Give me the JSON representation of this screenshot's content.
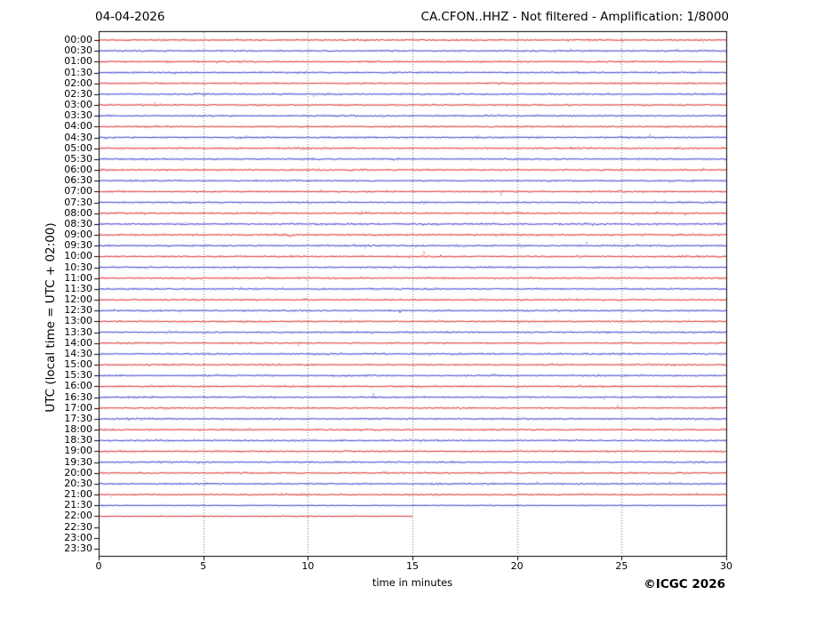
{
  "header": {
    "date": "04-04-2026",
    "title": "CA.CFON..HHZ - Not filtered - Amplification: 1/8000"
  },
  "footer": {
    "credit": "©ICGC 2026"
  },
  "chart_data": {
    "type": "line",
    "subtype": "helicorder-dayplot",
    "date": "04-04-2026",
    "title": "CA.CFON..HHZ - Not filtered - Amplification: 1/8000",
    "xlabel": "time in minutes",
    "ylabel": "UTC (local time = UTC + 02:00)",
    "xlim": [
      0,
      30
    ],
    "x_ticks": [
      0,
      5,
      10,
      15,
      20,
      25,
      30
    ],
    "minutes_per_line": 30,
    "grid": {
      "vertical_dotted_minutes": [
        5,
        10,
        15,
        20,
        25
      ],
      "color": "#777777"
    },
    "colors": {
      "hour_trace": "#d40000",
      "half_hour_trace": "#1414c8",
      "frame": "#000000"
    },
    "rows": [
      {
        "label": "00:00",
        "color": "#d40000",
        "start_min": 0,
        "end_min": 30,
        "amp": 1
      },
      {
        "label": "00:30",
        "color": "#1414c8",
        "start_min": 0,
        "end_min": 30,
        "amp": 1
      },
      {
        "label": "01:00",
        "color": "#d40000",
        "start_min": 0,
        "end_min": 30,
        "amp": 1
      },
      {
        "label": "01:30",
        "color": "#1414c8",
        "start_min": 0,
        "end_min": 30,
        "amp": 1
      },
      {
        "label": "02:00",
        "color": "#d40000",
        "start_min": 0,
        "end_min": 30,
        "amp": 1
      },
      {
        "label": "02:30",
        "color": "#1414c8",
        "start_min": 0,
        "end_min": 30,
        "amp": 1
      },
      {
        "label": "03:00",
        "color": "#d40000",
        "start_min": 0,
        "end_min": 30,
        "amp": 1
      },
      {
        "label": "03:30",
        "color": "#1414c8",
        "start_min": 0,
        "end_min": 30,
        "amp": 1
      },
      {
        "label": "04:00",
        "color": "#d40000",
        "start_min": 0,
        "end_min": 30,
        "amp": 1
      },
      {
        "label": "04:30",
        "color": "#1414c8",
        "start_min": 0,
        "end_min": 30,
        "amp": 1
      },
      {
        "label": "05:00",
        "color": "#d40000",
        "start_min": 0,
        "end_min": 30,
        "amp": 1
      },
      {
        "label": "05:30",
        "color": "#1414c8",
        "start_min": 0,
        "end_min": 30,
        "amp": 1
      },
      {
        "label": "06:00",
        "color": "#d40000",
        "start_min": 0,
        "end_min": 30,
        "amp": 1
      },
      {
        "label": "06:30",
        "color": "#1414c8",
        "start_min": 0,
        "end_min": 30,
        "amp": 1
      },
      {
        "label": "07:00",
        "color": "#d40000",
        "start_min": 0,
        "end_min": 30,
        "amp": 1
      },
      {
        "label": "07:30",
        "color": "#1414c8",
        "start_min": 0,
        "end_min": 30,
        "amp": 1
      },
      {
        "label": "08:00",
        "color": "#d40000",
        "start_min": 0,
        "end_min": 30,
        "amp": 1.15
      },
      {
        "label": "08:30",
        "color": "#1414c8",
        "start_min": 0,
        "end_min": 30,
        "amp": 1.15
      },
      {
        "label": "09:00",
        "color": "#d40000",
        "start_min": 0,
        "end_min": 30,
        "amp": 1.15
      },
      {
        "label": "09:30",
        "color": "#1414c8",
        "start_min": 0,
        "end_min": 30,
        "amp": 1.15
      },
      {
        "label": "10:00",
        "color": "#d40000",
        "start_min": 0,
        "end_min": 30,
        "amp": 1
      },
      {
        "label": "10:30",
        "color": "#1414c8",
        "start_min": 0,
        "end_min": 30,
        "amp": 1
      },
      {
        "label": "11:00",
        "color": "#d40000",
        "start_min": 0,
        "end_min": 30,
        "amp": 1
      },
      {
        "label": "11:30",
        "color": "#1414c8",
        "start_min": 0,
        "end_min": 30,
        "amp": 1
      },
      {
        "label": "12:00",
        "color": "#d40000",
        "start_min": 0,
        "end_min": 30,
        "amp": 1
      },
      {
        "label": "12:30",
        "color": "#1414c8",
        "start_min": 0,
        "end_min": 30,
        "amp": 1
      },
      {
        "label": "13:00",
        "color": "#d40000",
        "start_min": 0,
        "end_min": 30,
        "amp": 1
      },
      {
        "label": "13:30",
        "color": "#1414c8",
        "start_min": 0,
        "end_min": 30,
        "amp": 1
      },
      {
        "label": "14:00",
        "color": "#d40000",
        "start_min": 0,
        "end_min": 30,
        "amp": 1
      },
      {
        "label": "14:30",
        "color": "#1414c8",
        "start_min": 0,
        "end_min": 30,
        "amp": 1
      },
      {
        "label": "15:00",
        "color": "#d40000",
        "start_min": 0,
        "end_min": 30,
        "amp": 1
      },
      {
        "label": "15:30",
        "color": "#1414c8",
        "start_min": 0,
        "end_min": 30,
        "amp": 1
      },
      {
        "label": "16:00",
        "color": "#d40000",
        "start_min": 0,
        "end_min": 30,
        "amp": 1
      },
      {
        "label": "16:30",
        "color": "#1414c8",
        "start_min": 0,
        "end_min": 30,
        "amp": 1
      },
      {
        "label": "17:00",
        "color": "#d40000",
        "start_min": 0,
        "end_min": 30,
        "amp": 0.9
      },
      {
        "label": "17:30",
        "color": "#1414c8",
        "start_min": 0,
        "end_min": 30,
        "amp": 1
      },
      {
        "label": "18:00",
        "color": "#d40000",
        "start_min": 0,
        "end_min": 30,
        "amp": 1
      },
      {
        "label": "18:30",
        "color": "#1414c8",
        "start_min": 0,
        "end_min": 30,
        "amp": 1
      },
      {
        "label": "19:00",
        "color": "#d40000",
        "start_min": 0,
        "end_min": 30,
        "amp": 1
      },
      {
        "label": "19:30",
        "color": "#1414c8",
        "start_min": 0,
        "end_min": 30,
        "amp": 1
      },
      {
        "label": "20:00",
        "color": "#d40000",
        "start_min": 0,
        "end_min": 30,
        "amp": 1
      },
      {
        "label": "20:30",
        "color": "#1414c8",
        "start_min": 0,
        "end_min": 30,
        "amp": 1
      },
      {
        "label": "21:00",
        "color": "#d40000",
        "start_min": 0,
        "end_min": 30,
        "amp": 1
      },
      {
        "label": "21:30",
        "color": "#1414c8",
        "start_min": 0,
        "end_min": 30,
        "amp": 0.65
      },
      {
        "label": "22:00",
        "color": "#d40000",
        "start_min": 0,
        "end_min": 15,
        "amp": 0.65
      },
      {
        "label": "22:30",
        "color": "#1414c8",
        "start_min": 0,
        "end_min": 0,
        "amp": 0
      },
      {
        "label": "23:00",
        "color": "#d40000",
        "start_min": 0,
        "end_min": 0,
        "amp": 0
      },
      {
        "label": "23:30",
        "color": "#1414c8",
        "start_min": 0,
        "end_min": 0,
        "amp": 0
      }
    ]
  }
}
